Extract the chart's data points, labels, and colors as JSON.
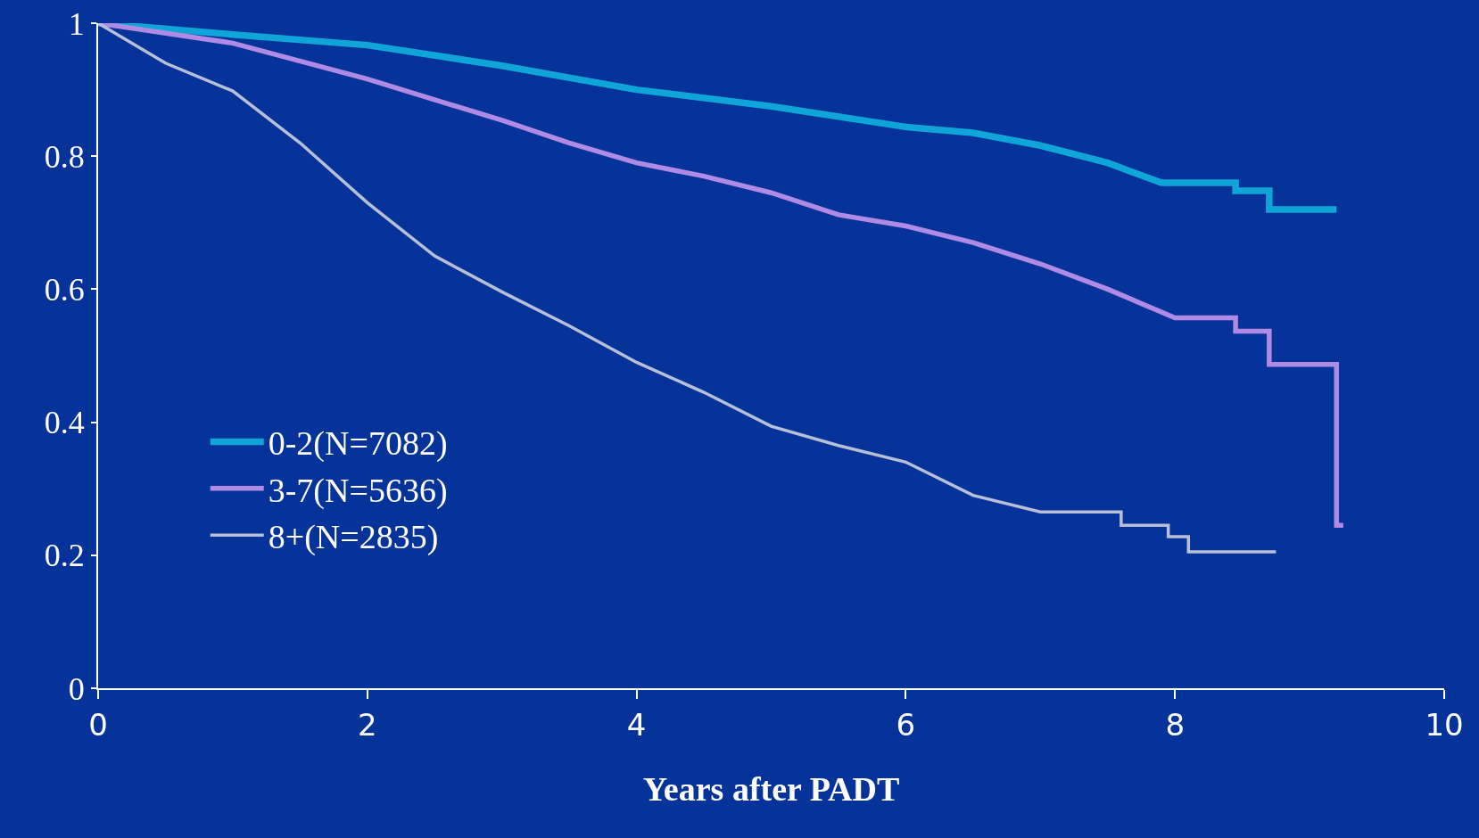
{
  "chart_data": {
    "type": "line",
    "xlabel": "Years after PADT",
    "xlim": [
      0,
      10
    ],
    "xticks": [
      0,
      2,
      4,
      6,
      8,
      10
    ],
    "ylim": [
      0,
      1
    ],
    "yticks": [
      0,
      0.2,
      0.4,
      0.6,
      0.8,
      1
    ],
    "grid": false,
    "legend": "left",
    "marker": "none",
    "line_style": "solid",
    "series": [
      {
        "name": "0-2(N=7082)",
        "color": "#0fa5d8",
        "x": [
          0,
          1,
          2,
          3,
          4,
          5,
          6,
          6.5,
          7,
          7.5,
          7.9,
          8.45,
          8.45,
          8.7,
          8.7,
          9.2
        ],
        "values": [
          1,
          0.983,
          0.967,
          0.936,
          0.9,
          0.875,
          0.844,
          0.835,
          0.816,
          0.79,
          0.76,
          0.76,
          0.748,
          0.748,
          0.72,
          0.72
        ]
      },
      {
        "name": "3-7(N=5636)",
        "color": "#b08be6",
        "x": [
          0,
          1,
          2,
          2.5,
          3,
          3.5,
          4,
          4.5,
          5,
          5.5,
          6,
          6.5,
          7,
          7.5,
          8,
          8.45,
          8.45,
          8.7,
          8.7,
          9.2,
          9.2,
          9.25
        ],
        "values": [
          1,
          0.97,
          0.916,
          0.885,
          0.854,
          0.82,
          0.79,
          0.77,
          0.745,
          0.712,
          0.695,
          0.67,
          0.638,
          0.6,
          0.557,
          0.557,
          0.537,
          0.537,
          0.487,
          0.487,
          0.245,
          0.245
        ]
      },
      {
        "name": "8+(N=2835)",
        "color": "#b8c0d8",
        "x": [
          0,
          0.5,
          1,
          1.5,
          2,
          2.5,
          3,
          3.5,
          4,
          4.5,
          5,
          5.5,
          6,
          6.5,
          7,
          7.6,
          7.6,
          7.95,
          7.95,
          8.1,
          8.1,
          8.75
        ],
        "values": [
          1,
          0.94,
          0.898,
          0.82,
          0.73,
          0.65,
          0.596,
          0.545,
          0.49,
          0.445,
          0.394,
          0.365,
          0.34,
          0.29,
          0.265,
          0.265,
          0.245,
          0.245,
          0.228,
          0.228,
          0.205,
          0.205
        ]
      }
    ]
  }
}
